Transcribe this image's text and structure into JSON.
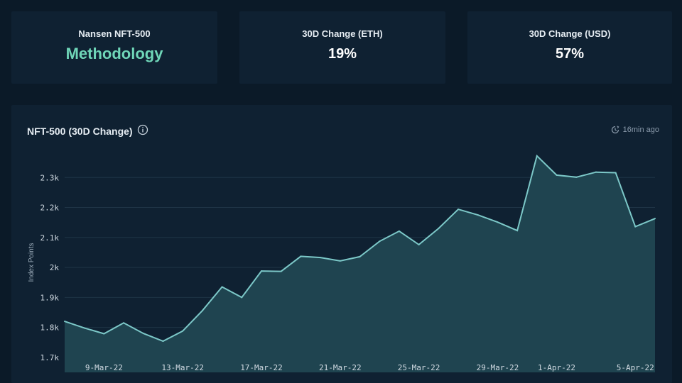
{
  "stats": [
    {
      "label": "Nansen NFT-500",
      "value": "Methodology"
    },
    {
      "label": "30D Change (ETH)",
      "value": "19%"
    },
    {
      "label": "30D Change (USD)",
      "value": "57%"
    }
  ],
  "chart_header": {
    "title": "NFT-500 (30D Change)",
    "updated": "16min ago",
    "info_icon": "info-circle-icon",
    "clock_icon": "clock-refresh-icon"
  },
  "colors": {
    "line": "#7cc8c8",
    "fill": "#1f4450",
    "grid": "#1f3446",
    "accent": "#6fd6b8"
  },
  "chart_data": {
    "type": "area",
    "title": "NFT-500 (30D Change)",
    "xlabel": "",
    "ylabel": "Index Points",
    "ylim": [
      1650,
      2400
    ],
    "yticks": [
      1700,
      1800,
      1900,
      2000,
      2100,
      2200,
      2300
    ],
    "ytick_labels": [
      "1.7k",
      "1.8k",
      "1.9k",
      "2k",
      "2.1k",
      "2.2k",
      "2.3k"
    ],
    "xtick_labels": [
      "9-Mar-22",
      "13-Mar-22",
      "17-Mar-22",
      "21-Mar-22",
      "25-Mar-22",
      "29-Mar-22",
      "1-Apr-22",
      "5-Apr-22"
    ],
    "xtick_dates": [
      "2022-03-09",
      "2022-03-13",
      "2022-03-17",
      "2022-03-21",
      "2022-03-25",
      "2022-03-29",
      "2022-04-01",
      "2022-04-05"
    ],
    "grid": true,
    "series": [
      {
        "name": "",
        "x": [
          "2022-03-07",
          "2022-03-08",
          "2022-03-09",
          "2022-03-10",
          "2022-03-11",
          "2022-03-12",
          "2022-03-13",
          "2022-03-14",
          "2022-03-15",
          "2022-03-16",
          "2022-03-17",
          "2022-03-18",
          "2022-03-19",
          "2022-03-20",
          "2022-03-21",
          "2022-03-22",
          "2022-03-23",
          "2022-03-24",
          "2022-03-25",
          "2022-03-26",
          "2022-03-27",
          "2022-03-28",
          "2022-03-29",
          "2022-03-30",
          "2022-03-31",
          "2022-04-01",
          "2022-04-02",
          "2022-04-03",
          "2022-04-04",
          "2022-04-05",
          "2022-04-06"
        ],
        "values": [
          1820,
          1798,
          1779,
          1815,
          1780,
          1754,
          1788,
          1856,
          1935,
          1900,
          1988,
          1987,
          2037,
          2033,
          2022,
          2036,
          2087,
          2121,
          2076,
          2130,
          2194,
          2175,
          2151,
          2123,
          2372,
          2308,
          2301,
          2318,
          2316,
          2136,
          2163
        ]
      }
    ]
  }
}
